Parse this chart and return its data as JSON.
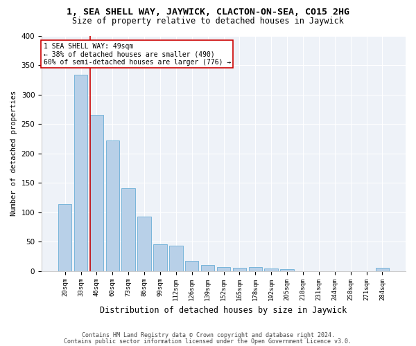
{
  "title": "1, SEA SHELL WAY, JAYWICK, CLACTON-ON-SEA, CO15 2HG",
  "subtitle": "Size of property relative to detached houses in Jaywick",
  "xlabel": "Distribution of detached houses by size in Jaywick",
  "ylabel": "Number of detached properties",
  "categories": [
    "20sqm",
    "33sqm",
    "46sqm",
    "60sqm",
    "73sqm",
    "86sqm",
    "99sqm",
    "112sqm",
    "126sqm",
    "139sqm",
    "152sqm",
    "165sqm",
    "178sqm",
    "192sqm",
    "205sqm",
    "218sqm",
    "231sqm",
    "244sqm",
    "258sqm",
    "271sqm",
    "284sqm"
  ],
  "values": [
    114,
    333,
    265,
    222,
    141,
    92,
    46,
    43,
    17,
    10,
    7,
    5,
    7,
    4,
    3,
    0,
    0,
    0,
    0,
    0,
    5
  ],
  "bar_color": "#b8d0e8",
  "bar_edgecolor": "#6aaed6",
  "bg_color": "#eef2f8",
  "annotation_text_line1": "1 SEA SHELL WAY: 49sqm",
  "annotation_text_line2": "← 38% of detached houses are smaller (490)",
  "annotation_text_line3": "60% of semi-detached houses are larger (776) →",
  "vline_x": 1.57,
  "vline_color": "#cc0000",
  "ylim": [
    0,
    400
  ],
  "yticks": [
    0,
    50,
    100,
    150,
    200,
    250,
    300,
    350,
    400
  ],
  "footer1": "Contains HM Land Registry data © Crown copyright and database right 2024.",
  "footer2": "Contains public sector information licensed under the Open Government Licence v3.0."
}
